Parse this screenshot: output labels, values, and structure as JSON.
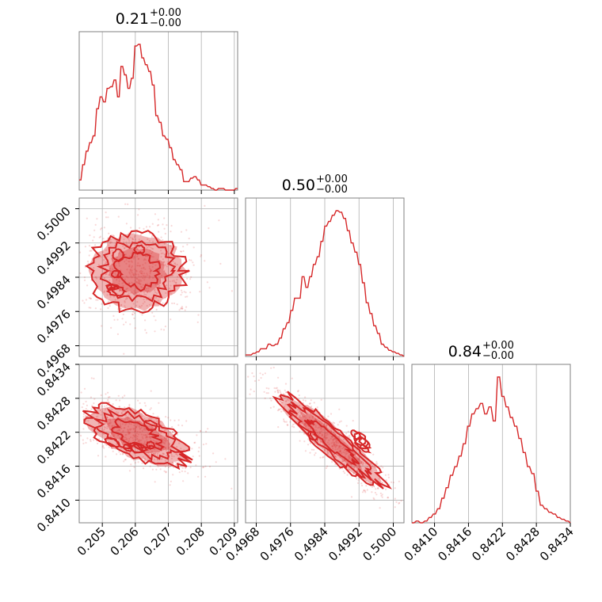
{
  "colors": {
    "series": "#d62728",
    "grid": "#b0b0b0",
    "frame": "#808080"
  },
  "chart_data": {
    "type": "corner",
    "params": [
      {
        "range": [
          0.2043,
          0.2091
        ],
        "ticks": [
          0.205,
          0.206,
          0.207,
          0.208,
          0.209
        ],
        "tick_labels": [
          "0.205",
          "0.206",
          "0.207",
          "0.208",
          "0.209"
        ],
        "title": {
          "value": "0.21",
          "plus": "+0.00",
          "minus": "−0.00"
        }
      },
      {
        "range": [
          0.49655,
          0.50025
        ],
        "ticks": [
          0.4968,
          0.4976,
          0.4984,
          0.4992,
          0.5
        ],
        "tick_labels": [
          "0.4968",
          "0.4976",
          "0.4984",
          "0.4992",
          "0.5000"
        ],
        "title": {
          "value": "0.50",
          "plus": "+0.00",
          "minus": "−0.00"
        }
      },
      {
        "range": [
          0.8406,
          0.8434
        ],
        "ticks": [
          0.841,
          0.8416,
          0.8422,
          0.8428,
          0.8434
        ],
        "tick_labels": [
          "0.8410",
          "0.8416",
          "0.8422",
          "0.8428",
          "0.8434"
        ],
        "title": {
          "value": "0.84",
          "plus": "+0.00",
          "minus": "−0.00"
        }
      }
    ],
    "histograms": [
      {
        "param": 0,
        "values": [
          6,
          6,
          15,
          15,
          23,
          23,
          28,
          28,
          32,
          32,
          48,
          48,
          55,
          55,
          52,
          52,
          60,
          60,
          61,
          61,
          65,
          65,
          55,
          55,
          73,
          73,
          68,
          68,
          60,
          60,
          66,
          66,
          85,
          85,
          86,
          86,
          78,
          78,
          74,
          74,
          70,
          70,
          62,
          62,
          44,
          44,
          40,
          40,
          32,
          32,
          30,
          30,
          25,
          25,
          18,
          18,
          15,
          15,
          12,
          12,
          5,
          5,
          5,
          5,
          7,
          7,
          8,
          8,
          6,
          6,
          3,
          3,
          3,
          3,
          2,
          2,
          1,
          1,
          0,
          0,
          1,
          1,
          1,
          1,
          0,
          0,
          0,
          0,
          0,
          0,
          1,
          1
        ]
      },
      {
        "param": 1,
        "values": [
          1,
          1,
          1,
          1,
          2,
          2,
          3,
          3,
          5,
          5,
          5,
          5,
          8,
          8,
          7,
          7,
          8,
          8,
          12,
          12,
          18,
          18,
          22,
          22,
          30,
          30,
          38,
          38,
          38,
          38,
          52,
          52,
          45,
          45,
          52,
          52,
          60,
          60,
          65,
          65,
          75,
          75,
          85,
          85,
          88,
          88,
          92,
          92,
          95,
          95,
          94,
          94,
          90,
          90,
          82,
          82,
          74,
          74,
          68,
          68,
          60,
          60,
          48,
          48,
          35,
          35,
          28,
          28,
          20,
          20,
          15,
          15,
          8,
          8,
          6,
          6,
          4,
          4,
          3,
          3,
          2,
          2,
          1,
          1,
          0
        ]
      },
      {
        "param": 2,
        "values": [
          0,
          0,
          1,
          1,
          0,
          0,
          1,
          1,
          3,
          3,
          5,
          5,
          8,
          8,
          14,
          14,
          20,
          20,
          27,
          27,
          32,
          32,
          38,
          38,
          45,
          45,
          55,
          55,
          62,
          62,
          65,
          65,
          68,
          68,
          62,
          62,
          66,
          66,
          58,
          58,
          83,
          83,
          72,
          72,
          66,
          66,
          60,
          60,
          55,
          55,
          48,
          48,
          40,
          40,
          32,
          32,
          28,
          28,
          18,
          18,
          10,
          10,
          8,
          8,
          6,
          6,
          5,
          5,
          3,
          3,
          2,
          2,
          1,
          1,
          0
        ]
      }
    ]
  }
}
